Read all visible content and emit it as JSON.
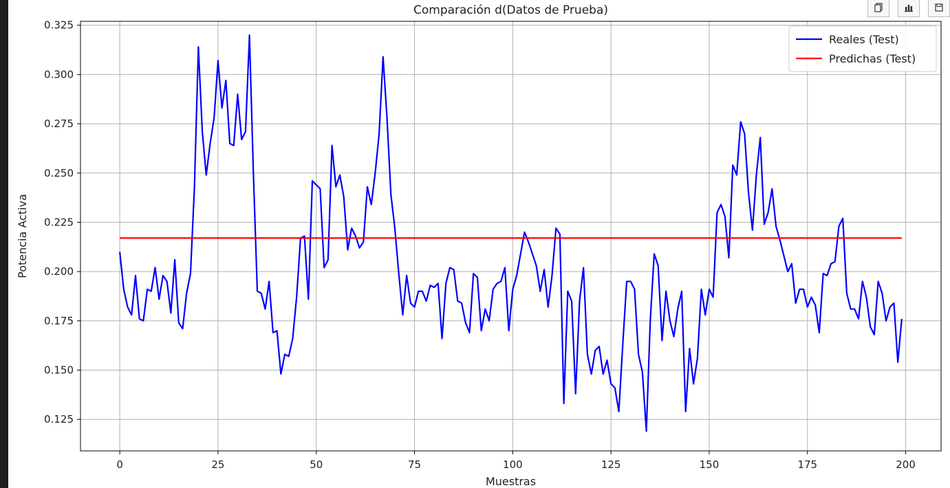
{
  "chart_data": {
    "type": "line",
    "title": "Comparación d(Datos de Prueba)",
    "xlabel": "Muestras",
    "ylabel": "Potencia Activa",
    "xlim": [
      -10,
      209
    ],
    "ylim": [
      0.109,
      0.327
    ],
    "xticks": [
      0,
      25,
      50,
      75,
      100,
      125,
      150,
      175,
      200
    ],
    "yticks": [
      0.125,
      0.15,
      0.175,
      0.2,
      0.225,
      0.25,
      0.275,
      0.3,
      0.325
    ],
    "ytick_labels": [
      "0.125",
      "0.150",
      "0.175",
      "0.200",
      "0.225",
      "0.250",
      "0.275",
      "0.300",
      "0.325"
    ],
    "xtick_labels": [
      "0",
      "25",
      "50",
      "75",
      "100",
      "125",
      "150",
      "175",
      "200"
    ],
    "grid": true,
    "legend_position": "top-right",
    "series": [
      {
        "name": "Reales (Test)",
        "color": "#0000ff",
        "x_start": 0,
        "values": [
          0.21,
          0.191,
          0.182,
          0.178,
          0.198,
          0.176,
          0.175,
          0.191,
          0.19,
          0.202,
          0.186,
          0.198,
          0.195,
          0.179,
          0.206,
          0.174,
          0.171,
          0.189,
          0.199,
          0.243,
          0.314,
          0.271,
          0.249,
          0.265,
          0.278,
          0.307,
          0.283,
          0.297,
          0.265,
          0.264,
          0.29,
          0.267,
          0.271,
          0.32,
          0.25,
          0.19,
          0.189,
          0.181,
          0.195,
          0.169,
          0.17,
          0.148,
          0.158,
          0.157,
          0.166,
          0.187,
          0.217,
          0.218,
          0.186,
          0.246,
          0.244,
          0.242,
          0.202,
          0.206,
          0.264,
          0.243,
          0.249,
          0.238,
          0.211,
          0.222,
          0.218,
          0.212,
          0.215,
          0.243,
          0.234,
          0.25,
          0.27,
          0.309,
          0.278,
          0.239,
          0.222,
          0.199,
          0.178,
          0.198,
          0.184,
          0.182,
          0.19,
          0.19,
          0.185,
          0.193,
          0.192,
          0.194,
          0.166,
          0.194,
          0.202,
          0.201,
          0.185,
          0.184,
          0.174,
          0.169,
          0.199,
          0.197,
          0.17,
          0.181,
          0.175,
          0.191,
          0.194,
          0.195,
          0.202,
          0.17,
          0.191,
          0.198,
          0.209,
          0.22,
          0.215,
          0.209,
          0.203,
          0.19,
          0.201,
          0.182,
          0.198,
          0.222,
          0.219,
          0.133,
          0.19,
          0.185,
          0.138,
          0.185,
          0.202,
          0.158,
          0.148,
          0.16,
          0.162,
          0.148,
          0.155,
          0.143,
          0.141,
          0.129,
          0.163,
          0.195,
          0.195,
          0.191,
          0.158,
          0.149,
          0.119,
          0.175,
          0.209,
          0.203,
          0.165,
          0.19,
          0.175,
          0.167,
          0.181,
          0.19,
          0.129,
          0.161,
          0.143,
          0.156,
          0.191,
          0.178,
          0.191,
          0.187,
          0.23,
          0.234,
          0.228,
          0.207,
          0.254,
          0.249,
          0.276,
          0.27,
          0.24,
          0.221,
          0.249,
          0.268,
          0.224,
          0.23,
          0.242,
          0.223,
          0.216,
          0.208,
          0.2,
          0.204,
          0.184,
          0.191,
          0.191,
          0.182,
          0.187,
          0.183,
          0.169,
          0.199,
          0.198,
          0.204,
          0.205,
          0.223,
          0.227,
          0.189,
          0.181,
          0.181,
          0.176,
          0.195,
          0.187,
          0.172,
          0.168,
          0.195,
          0.189,
          0.175,
          0.182,
          0.184,
          0.154,
          0.176
        ]
      },
      {
        "name": "Predichas (Test)",
        "color": "#ff0000",
        "x": [
          0,
          199
        ],
        "values": [
          0.217,
          0.217
        ]
      }
    ]
  },
  "toolbar": {
    "buttons": [
      {
        "icon": "copy-icon",
        "glyph": "⧉"
      },
      {
        "icon": "bar-chart-icon",
        "glyph": "▮"
      },
      {
        "icon": "save-icon",
        "glyph": "▭"
      }
    ]
  },
  "window": {
    "background": "#ffffff",
    "left_strip_color": "#1f1f1f",
    "grid_color": "#b0b0b0",
    "axis_color": "#000000"
  }
}
